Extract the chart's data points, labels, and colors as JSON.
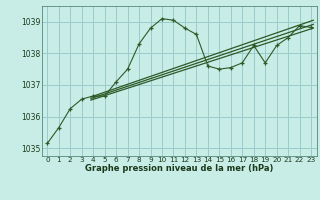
{
  "title": "Graphe pression niveau de la mer (hPa)",
  "bg_color": "#c8ece6",
  "grid_color": "#99cccc",
  "line_color": "#2d5a27",
  "xlim": [
    -0.5,
    23.5
  ],
  "ylim": [
    1034.75,
    1039.5
  ],
  "yticks": [
    1035,
    1036,
    1037,
    1038,
    1039
  ],
  "xticks": [
    0,
    1,
    2,
    3,
    4,
    5,
    6,
    7,
    8,
    9,
    10,
    11,
    12,
    13,
    14,
    15,
    16,
    17,
    18,
    19,
    20,
    21,
    22,
    23
  ],
  "main_x": [
    0,
    1,
    2,
    3,
    4,
    5,
    6,
    7,
    8,
    9,
    10,
    11,
    12,
    13,
    14,
    15,
    16,
    17,
    18,
    19,
    20,
    21,
    22,
    23
  ],
  "main_y": [
    1035.15,
    1035.65,
    1036.25,
    1036.55,
    1036.65,
    1036.65,
    1037.1,
    1037.5,
    1038.3,
    1038.8,
    1039.1,
    1039.05,
    1038.8,
    1038.6,
    1037.6,
    1037.5,
    1037.55,
    1037.7,
    1038.25,
    1037.7,
    1038.25,
    1038.5,
    1038.88,
    1038.82
  ],
  "trend1_x": [
    3.8,
    23.2
  ],
  "trend1_y": [
    1036.62,
    1039.05
  ],
  "trend2_x": [
    3.8,
    23.2
  ],
  "trend2_y": [
    1036.57,
    1038.92
  ],
  "trend3_x": [
    3.8,
    23.2
  ],
  "trend3_y": [
    1036.52,
    1038.8
  ],
  "ylabel_fontsize": 5.5,
  "xlabel_fontsize": 6.0,
  "tick_fontsize": 5.2
}
